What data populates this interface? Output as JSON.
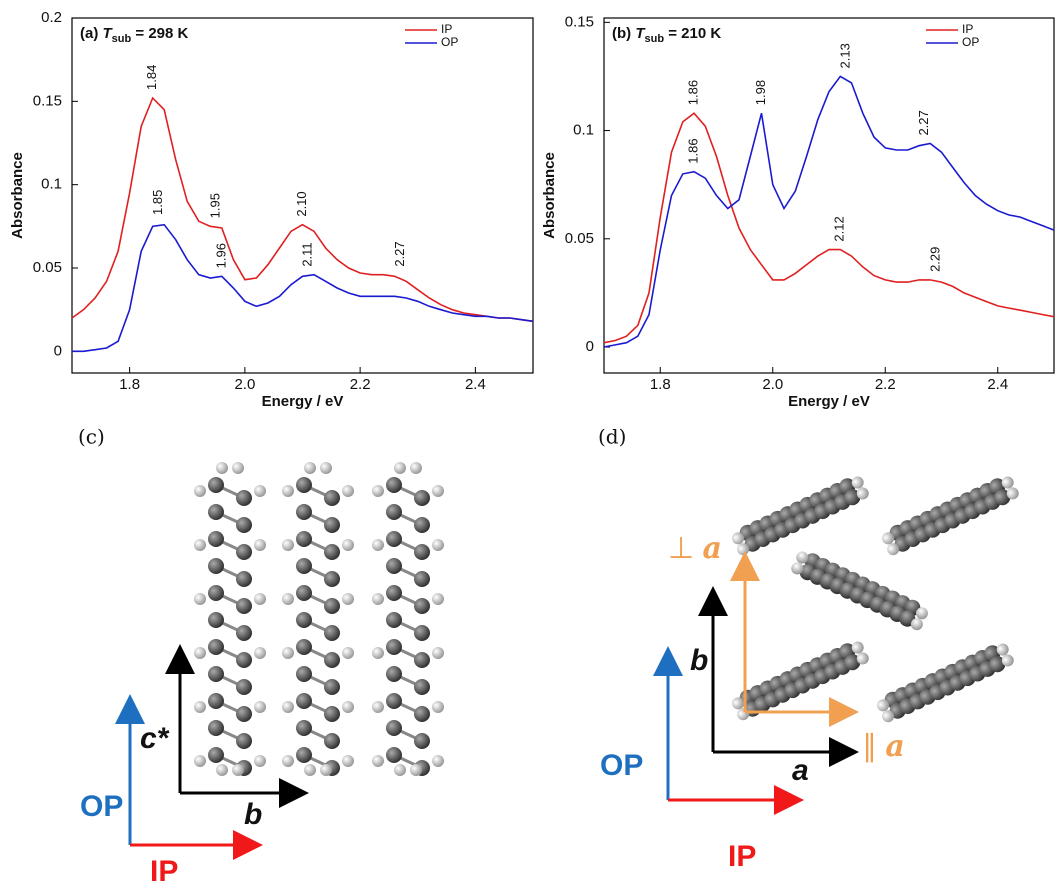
{
  "chart_data": [
    {
      "type": "line",
      "title_parts": [
        "(a) ",
        "T",
        "sub",
        " = 298 K"
      ],
      "xlabel": "Energy / eV",
      "ylabel": "Absorbance",
      "x": [
        1.7,
        1.72,
        1.74,
        1.76,
        1.78,
        1.8,
        1.82,
        1.84,
        1.86,
        1.88,
        1.9,
        1.92,
        1.94,
        1.96,
        1.98,
        2.0,
        2.02,
        2.04,
        2.06,
        2.08,
        2.1,
        2.12,
        2.14,
        2.16,
        2.18,
        2.2,
        2.22,
        2.24,
        2.26,
        2.28,
        2.3,
        2.32,
        2.34,
        2.36,
        2.38,
        2.4,
        2.42,
        2.44,
        2.46,
        2.48,
        2.5
      ],
      "series": [
        {
          "name": "IP",
          "color": "#e02020",
          "values": [
            0.02,
            0.025,
            0.032,
            0.042,
            0.06,
            0.095,
            0.135,
            0.152,
            0.145,
            0.115,
            0.09,
            0.078,
            0.075,
            0.074,
            0.055,
            0.043,
            0.044,
            0.052,
            0.062,
            0.072,
            0.076,
            0.072,
            0.062,
            0.055,
            0.05,
            0.047,
            0.046,
            0.046,
            0.045,
            0.042,
            0.037,
            0.032,
            0.028,
            0.025,
            0.023,
            0.022,
            0.021,
            0.02,
            0.02,
            0.019,
            0.018
          ],
          "peaks": [
            {
              "text": "1.84",
              "x": 1.84,
              "y": 0.152
            },
            {
              "text": "1.95",
              "x": 1.95,
              "y": 0.075
            },
            {
              "text": "2.10",
              "x": 2.1,
              "y": 0.076
            },
            {
              "text": "2.27",
              "x": 2.27,
              "y": 0.046
            }
          ]
        },
        {
          "name": "OP",
          "color": "#1a1ad0",
          "values": [
            0,
            0,
            0.001,
            0.002,
            0.006,
            0.025,
            0.06,
            0.075,
            0.076,
            0.067,
            0.055,
            0.046,
            0.044,
            0.045,
            0.038,
            0.03,
            0.027,
            0.029,
            0.033,
            0.04,
            0.045,
            0.046,
            0.042,
            0.038,
            0.035,
            0.033,
            0.033,
            0.033,
            0.033,
            0.032,
            0.03,
            0.027,
            0.025,
            0.023,
            0.022,
            0.021,
            0.021,
            0.02,
            0.02,
            0.019,
            0.018
          ],
          "peaks": [
            {
              "text": "1.85",
              "x": 1.85,
              "y": 0.077
            },
            {
              "text": "1.96",
              "x": 1.96,
              "y": 0.045
            },
            {
              "text": "2.11",
              "x": 2.11,
              "y": 0.046
            }
          ]
        }
      ],
      "xlim": [
        1.7,
        2.5
      ],
      "ylim": [
        -0.013,
        0.2
      ],
      "xticks": [
        1.8,
        {
          "value": 2,
          "label": "2.0"
        },
        2.2,
        2.4
      ],
      "yticks": [
        0,
        0.05,
        0.1,
        0.15,
        0.2
      ],
      "grid": false,
      "legend": "upper right"
    },
    {
      "type": "line",
      "title_parts": [
        "(b) ",
        "T",
        "sub",
        " = 210 K"
      ],
      "xlabel": "Energy / eV",
      "ylabel": "Absorbance",
      "x": [
        1.7,
        1.72,
        1.74,
        1.76,
        1.78,
        1.8,
        1.82,
        1.84,
        1.86,
        1.88,
        1.9,
        1.92,
        1.94,
        1.96,
        1.98,
        2.0,
        2.02,
        2.04,
        2.06,
        2.08,
        2.1,
        2.12,
        2.14,
        2.16,
        2.18,
        2.2,
        2.22,
        2.24,
        2.26,
        2.28,
        2.3,
        2.32,
        2.34,
        2.36,
        2.38,
        2.4,
        2.42,
        2.44,
        2.46,
        2.48,
        2.5
      ],
      "series": [
        {
          "name": "IP",
          "color": "#e02020",
          "values": [
            0.002,
            0.003,
            0.005,
            0.01,
            0.025,
            0.06,
            0.09,
            0.104,
            0.108,
            0.102,
            0.088,
            0.07,
            0.055,
            0.045,
            0.038,
            0.031,
            0.031,
            0.034,
            0.038,
            0.042,
            0.045,
            0.045,
            0.042,
            0.037,
            0.033,
            0.031,
            0.03,
            0.03,
            0.031,
            0.031,
            0.03,
            0.028,
            0.025,
            0.023,
            0.021,
            0.019,
            0.018,
            0.017,
            0.016,
            0.015,
            0.014
          ],
          "peaks": [
            {
              "text": "1.86",
              "x": 1.86,
              "y": 0.108
            },
            {
              "text": "2.12",
              "x": 2.12,
              "y": 0.045
            },
            {
              "text": "2.29",
              "x": 2.29,
              "y": 0.031
            }
          ]
        },
        {
          "name": "OP",
          "color": "#1a1ad0",
          "values": [
            0,
            0.001,
            0.002,
            0.005,
            0.015,
            0.045,
            0.07,
            0.08,
            0.081,
            0.078,
            0.07,
            0.064,
            0.068,
            0.088,
            0.108,
            0.075,
            0.064,
            0.072,
            0.088,
            0.105,
            0.118,
            0.125,
            0.122,
            0.108,
            0.097,
            0.092,
            0.091,
            0.091,
            0.093,
            0.094,
            0.09,
            0.083,
            0.076,
            0.07,
            0.066,
            0.063,
            0.061,
            0.06,
            0.058,
            0.056,
            0.054
          ],
          "peaks": [
            {
              "text": "1.86",
              "x": 1.86,
              "y": 0.081
            },
            {
              "text": "1.98",
              "x": 1.98,
              "y": 0.108
            },
            {
              "text": "2.13",
              "x": 2.13,
              "y": 0.125
            },
            {
              "text": "2.27",
              "x": 2.27,
              "y": 0.094
            }
          ]
        }
      ],
      "xlim": [
        1.7,
        2.5
      ],
      "ylim": [
        -0.012,
        0.152
      ],
      "xticks": [
        1.8,
        {
          "value": 2,
          "label": "2.0"
        },
        2.2,
        2.4
      ],
      "yticks": [
        0,
        0.05,
        0.1,
        0.15
      ],
      "grid": false,
      "legend": "upper right"
    }
  ],
  "diagrams": [
    {
      "panel": "(c)",
      "crystal_vertical": "c*",
      "crystal_horizontal": "b",
      "film_vertical": "OP",
      "film_horizontal": "IP"
    },
    {
      "panel": "(d)",
      "perp_symbol": "⊥",
      "perp_axis": "a",
      "par_symbol": "∥",
      "par_axis": "a",
      "crystal_vertical": "b",
      "crystal_horizontal": "a",
      "film_vertical": "OP",
      "film_horizontal": "IP"
    }
  ]
}
